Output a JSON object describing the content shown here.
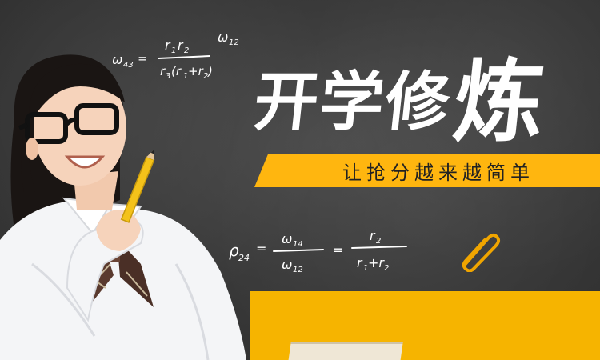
{
  "banner": {
    "headline_small": "开学修",
    "headline_big": "炼",
    "tagline": "让抢分越来越简单"
  },
  "formulas": {
    "top_left": "ω43 = r1r2 / r3(r1+r2) · ω12",
    "middle": "i24 = ω14 / ω12 = r2 / (r1+r2)"
  },
  "colors": {
    "board": "#3a3a3a",
    "accent": "#ffb60f",
    "text": "#ffffff"
  }
}
